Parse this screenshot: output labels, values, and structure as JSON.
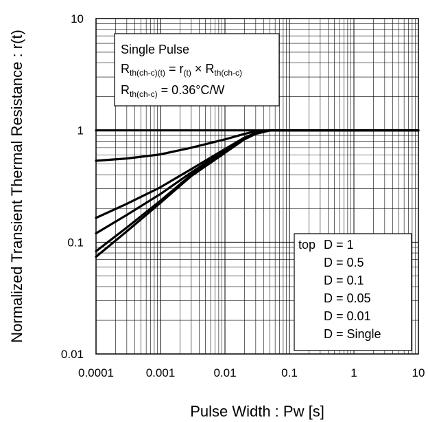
{
  "chart_data": {
    "type": "line",
    "title": "",
    "xlabel": "Pulse Width : Pw [s]",
    "ylabel": "Normalized Transient Thermal Resistance : r(t)",
    "x_scale": "log",
    "y_scale": "log",
    "xlim": [
      0.0001,
      10
    ],
    "ylim": [
      0.01,
      10
    ],
    "x_ticks": [
      "0.0001",
      "0.001",
      "0.01",
      "0.1",
      "1",
      "10"
    ],
    "y_ticks": [
      "0.01",
      "0.1",
      "1",
      "10"
    ],
    "grid": true,
    "series": [
      {
        "name": "D = 1",
        "x": [
          0.0001,
          0.001,
          0.01,
          0.1,
          1,
          10
        ],
        "y": [
          1,
          1,
          1,
          1,
          1,
          1
        ]
      },
      {
        "name": "D = 0.5",
        "x": [
          0.0001,
          0.0003,
          0.001,
          0.003,
          0.01,
          0.02,
          0.03,
          0.05,
          0.1,
          10
        ],
        "y": [
          0.535,
          0.56,
          0.61,
          0.7,
          0.83,
          0.93,
          0.98,
          1,
          1,
          1
        ]
      },
      {
        "name": "D = 0.1",
        "x": [
          0.0001,
          0.0003,
          0.001,
          0.003,
          0.01,
          0.02,
          0.03,
          0.05,
          0.1,
          10
        ],
        "y": [
          0.165,
          0.22,
          0.31,
          0.45,
          0.68,
          0.86,
          0.95,
          1,
          1,
          1
        ]
      },
      {
        "name": "D = 0.05",
        "x": [
          0.0001,
          0.0003,
          0.001,
          0.003,
          0.01,
          0.02,
          0.03,
          0.05,
          0.1,
          10
        ],
        "y": [
          0.12,
          0.175,
          0.27,
          0.42,
          0.66,
          0.85,
          0.94,
          1,
          1,
          1
        ]
      },
      {
        "name": "D = 0.01",
        "x": [
          0.0001,
          0.0003,
          0.001,
          0.003,
          0.01,
          0.02,
          0.03,
          0.05,
          0.1,
          10
        ],
        "y": [
          0.083,
          0.135,
          0.235,
          0.4,
          0.64,
          0.84,
          0.94,
          1,
          1,
          1
        ]
      },
      {
        "name": "D = Single",
        "x": [
          0.0001,
          0.0003,
          0.001,
          0.003,
          0.01,
          0.02,
          0.03,
          0.05,
          0.1,
          10
        ],
        "y": [
          0.074,
          0.125,
          0.225,
          0.39,
          0.63,
          0.83,
          0.93,
          1,
          1,
          1
        ]
      }
    ],
    "info_box": {
      "line1": "Single Pulse",
      "line2_R": "R",
      "line2_sub": "th(ch-c)(t)",
      "line2_eq": " = r",
      "line2_rsub": "(t)",
      "line2_times": " × R",
      "line2_sub2": "th(ch-c)",
      "line3_R": "R",
      "line3_sub": "th(ch-c)",
      "line3_val": " = 0.36°C/W"
    },
    "legend": {
      "position": "bottom-right",
      "prefix": "top",
      "entries": [
        "D = 1",
        "D = 0.5",
        "D = 0.1",
        "D = 0.05",
        "D = 0.01",
        "D = Single"
      ]
    }
  }
}
